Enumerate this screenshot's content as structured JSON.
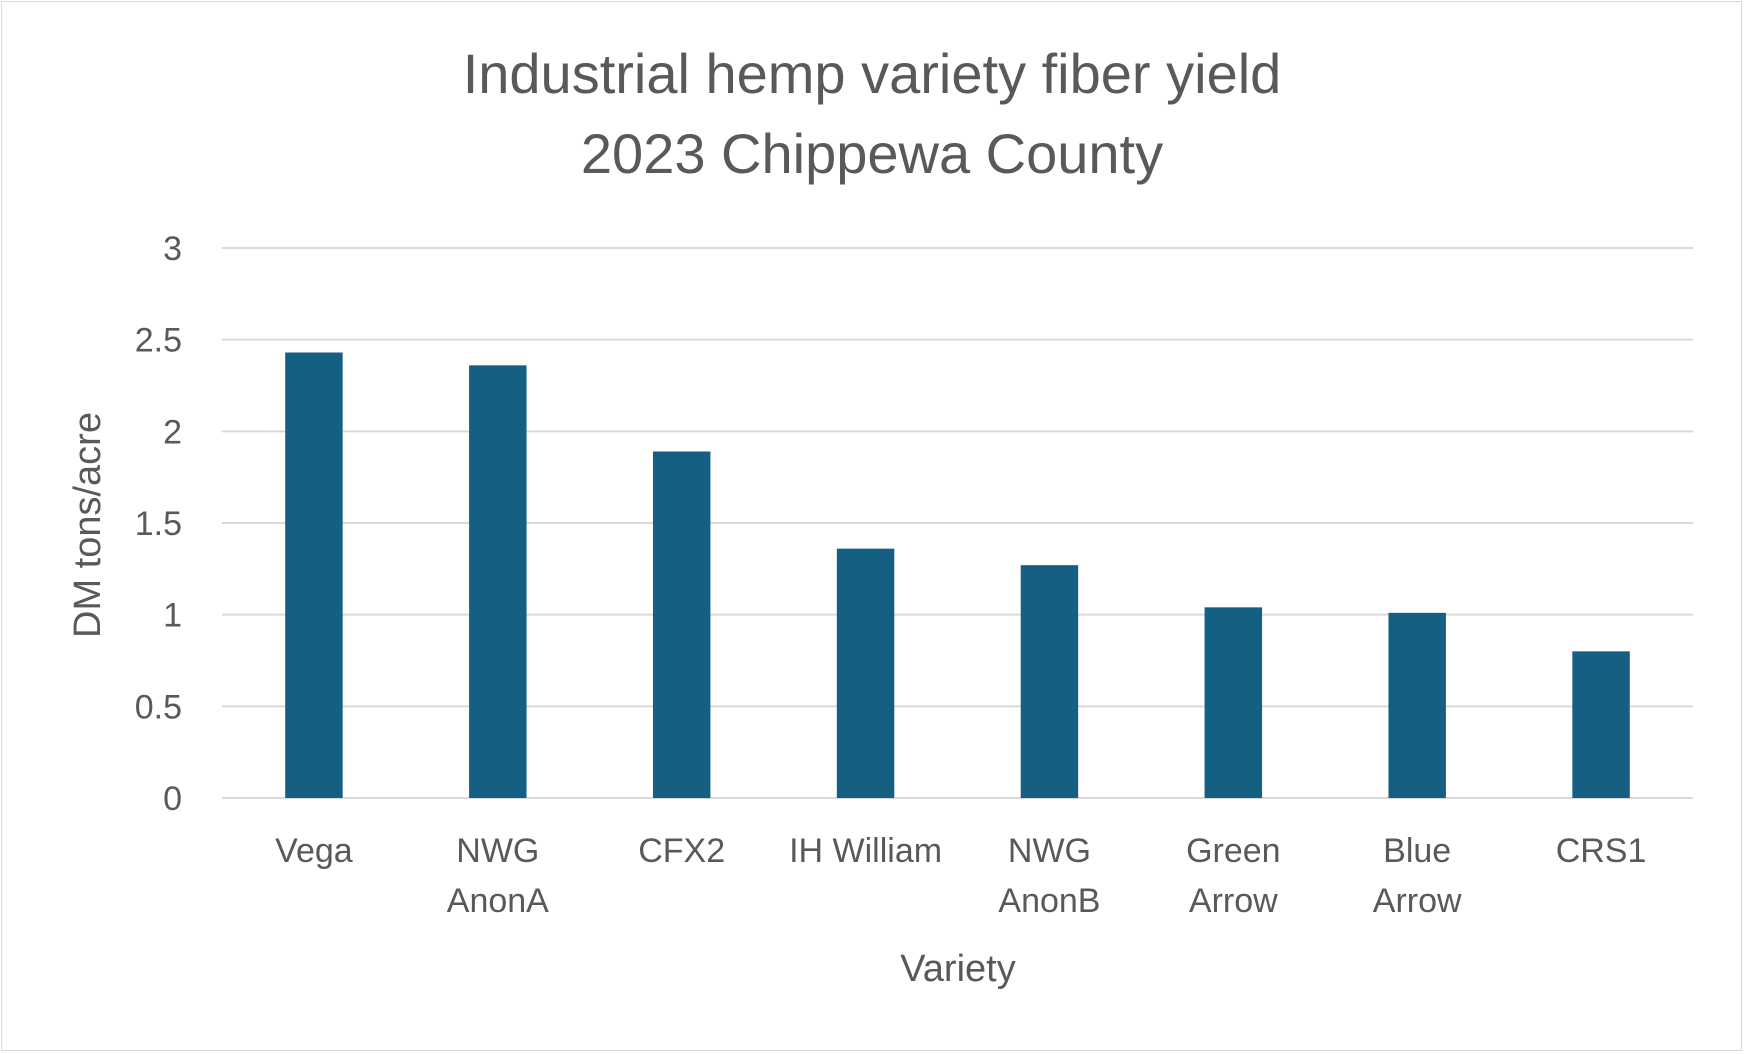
{
  "chart_data": {
    "type": "bar",
    "title_lines": [
      "Industrial hemp variety fiber yield",
      "2023 Chippewa County"
    ],
    "xlabel": "Variety",
    "ylabel": "DM tons/acre",
    "categories": [
      [
        "Vega"
      ],
      [
        "NWG",
        "AnonA"
      ],
      [
        "CFX2"
      ],
      [
        "IH William"
      ],
      [
        "NWG",
        "AnonB"
      ],
      [
        "Green",
        "Arrow"
      ],
      [
        "Blue",
        "Arrow"
      ],
      [
        "CRS1"
      ]
    ],
    "values": [
      2.43,
      2.36,
      1.89,
      1.36,
      1.27,
      1.04,
      1.01,
      0.8
    ],
    "ylim": [
      0,
      3
    ],
    "yticks": [
      "0",
      "0.5",
      "1",
      "1.5",
      "2",
      "2.5",
      "3"
    ],
    "grid": true,
    "colors": {
      "bar": "#156082",
      "grid": "#d9d9d9",
      "text": "#595959"
    }
  }
}
